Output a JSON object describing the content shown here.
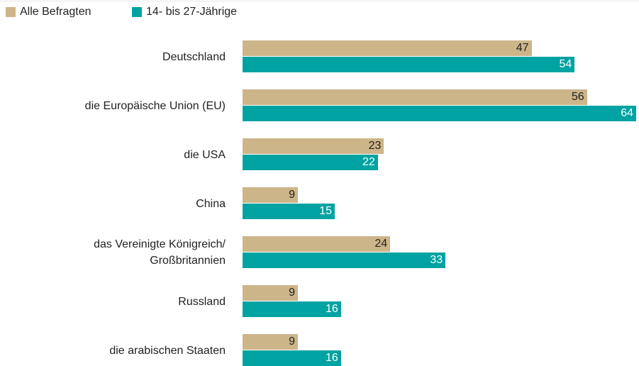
{
  "chart_data": {
    "type": "bar",
    "orientation": "horizontal",
    "categories": [
      "Deutschland",
      "die Europäische Union (EU)",
      "die USA",
      "China",
      "das Vereinigte Königreich/\nGroßbritannien",
      "Russland",
      "die arabischen Staaten"
    ],
    "series": [
      {
        "name": "Alle Befragten",
        "color": "#cdb58a",
        "label_color": "#222222",
        "values": [
          47,
          56,
          23,
          9,
          24,
          9,
          9
        ]
      },
      {
        "name": "14- bis 27-Jährige",
        "color": "#00a3a1",
        "label_color": "#ffffff",
        "values": [
          54,
          64,
          22,
          15,
          33,
          16,
          16
        ]
      }
    ]
  }
}
